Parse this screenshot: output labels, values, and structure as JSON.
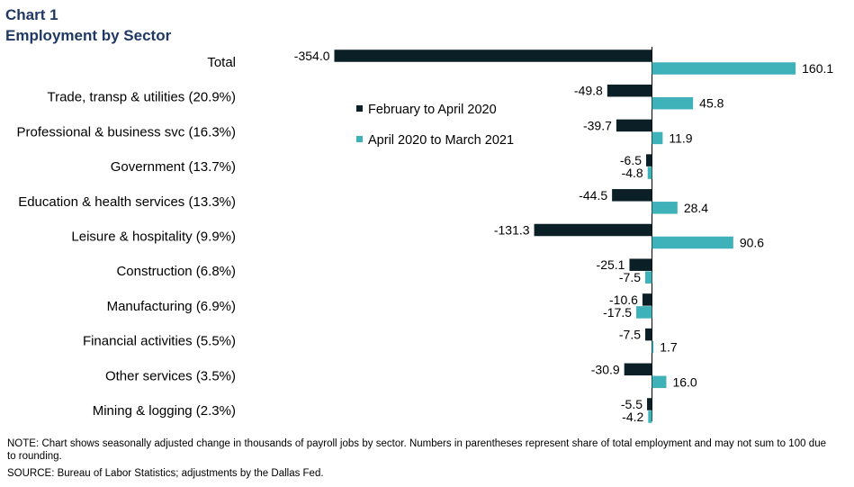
{
  "header": {
    "title_line1": "Chart 1",
    "title_line2": "Employment by Sector"
  },
  "colors": {
    "series1": "#0b1f26",
    "series2": "#3fb1b8",
    "title": "#1f3864"
  },
  "chart_data": {
    "type": "bar",
    "orientation": "horizontal",
    "title": "Employment by Sector",
    "xlabel": "",
    "ylabel": "",
    "grid": false,
    "legend_position": "upper-center",
    "categories": [
      "Total",
      "Trade, transp & utilities (20.9%)",
      "Professional & business svc (16.3%)",
      "Government (13.7%)",
      "Education & health services (13.3%)",
      "Leisure & hospitality (9.9%)",
      "Construction (6.8%)",
      "Manufacturing (6.9%)",
      "Financial activities (5.5%)",
      "Other services (3.5%)",
      "Mining & logging (2.3%)"
    ],
    "series": [
      {
        "name": "February to April 2020",
        "values": [
          -354.0,
          -49.8,
          -39.7,
          -6.5,
          -44.5,
          -131.3,
          -25.1,
          -10.6,
          -7.5,
          -30.9,
          -5.5
        ],
        "labels": [
          "-354.0",
          "-49.8",
          "-39.7",
          "-6.5",
          "-44.5",
          "-131.3",
          "-25.1",
          "-10.6",
          "-7.5",
          "-30.9",
          "-5.5"
        ]
      },
      {
        "name": "April 2020 to March 2021",
        "values": [
          160.1,
          45.8,
          11.9,
          -4.8,
          28.4,
          90.6,
          -7.5,
          -17.5,
          1.7,
          16.0,
          -4.2
        ],
        "labels": [
          "160.1",
          "45.8",
          "11.9",
          "-4.8",
          "28.4",
          "90.6",
          "-7.5",
          "-17.5",
          "1.7",
          "16.0",
          "-4.2"
        ]
      }
    ]
  },
  "footer": {
    "note": "NOTE: Chart shows seasonally adjusted change in thousands of payroll jobs by sector. Numbers in parentheses represent share of total employment and may not sum to 100 due to rounding.",
    "source": "SOURCE: Bureau of Labor Statistics; adjustments by the Dallas Fed."
  }
}
